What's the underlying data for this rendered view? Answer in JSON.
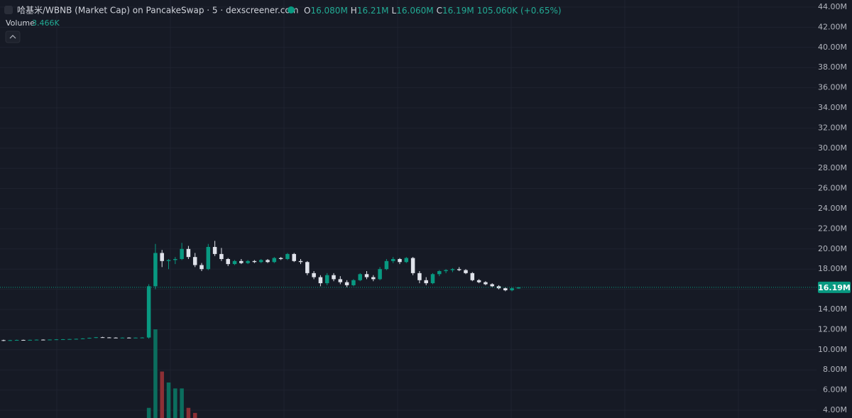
{
  "chart_data": {
    "type": "candlestick",
    "title": "哈基米/WBNB (Market Cap) on PancakeSwap · 5 · dexscreener.com",
    "legend": [
      {
        "key": "O",
        "value": "16.080M"
      },
      {
        "key": "H",
        "value": "16.21M"
      },
      {
        "key": "L",
        "value": "16.060M"
      },
      {
        "key": "C",
        "value": "16.19M"
      }
    ],
    "change": "105.060K (+0.65%)",
    "volume_label": "Volume",
    "volume_value": "3.466K",
    "up_color": "#089981",
    "down_color": "#e0e3eb",
    "volume_up_color": "#0b6e5e",
    "volume_down_color": "#8c2f35",
    "ylim": [
      4,
      44
    ],
    "yticks": [
      {
        "value": 4,
        "label": "4.00M"
      },
      {
        "value": 6,
        "label": "6.00M"
      },
      {
        "value": 8,
        "label": "8.00M"
      },
      {
        "value": 10,
        "label": "10.00M"
      },
      {
        "value": 12,
        "label": "12.00M"
      },
      {
        "value": 14,
        "label": "14.00M"
      },
      {
        "value": 16,
        "label": "16.00M"
      },
      {
        "value": 18,
        "label": "18.00M"
      },
      {
        "value": 20,
        "label": "20.00M"
      },
      {
        "value": 22,
        "label": "22.00M"
      },
      {
        "value": 24,
        "label": "24.00M"
      },
      {
        "value": 26,
        "label": "26.00M"
      },
      {
        "value": 28,
        "label": "28.00M"
      },
      {
        "value": 30,
        "label": "30.00M"
      },
      {
        "value": 32,
        "label": "32.00M"
      },
      {
        "value": 34,
        "label": "34.00M"
      },
      {
        "value": 36,
        "label": "36.00M"
      },
      {
        "value": 38,
        "label": "38.00M"
      },
      {
        "value": 40,
        "label": "40.00M"
      },
      {
        "value": 42,
        "label": "42.00M"
      },
      {
        "value": 44,
        "label": "44.00M"
      }
    ],
    "last_price": {
      "value": 16.19,
      "label": "16.19M"
    },
    "ohlc": [
      [
        10.95,
        11.0,
        10.85,
        10.9
      ],
      [
        10.9,
        10.98,
        10.88,
        10.95
      ],
      [
        10.95,
        11.0,
        10.92,
        10.97
      ],
      [
        10.97,
        11.0,
        10.94,
        10.96
      ],
      [
        10.96,
        11.0,
        10.93,
        10.98
      ],
      [
        10.98,
        11.02,
        10.95,
        11.0
      ],
      [
        11.0,
        11.03,
        10.97,
        10.99
      ],
      [
        10.99,
        11.02,
        10.96,
        11.01
      ],
      [
        11.01,
        11.05,
        10.98,
        11.03
      ],
      [
        11.03,
        11.06,
        11.0,
        11.04
      ],
      [
        11.04,
        11.08,
        11.02,
        11.06
      ],
      [
        11.06,
        11.1,
        11.03,
        11.08
      ],
      [
        11.08,
        11.14,
        11.05,
        11.12
      ],
      [
        11.12,
        11.2,
        11.1,
        11.18
      ],
      [
        11.18,
        11.26,
        11.15,
        11.24
      ],
      [
        11.24,
        11.28,
        11.2,
        11.22
      ],
      [
        11.22,
        11.25,
        11.18,
        11.2
      ],
      [
        11.2,
        11.24,
        11.16,
        11.18
      ],
      [
        11.18,
        11.22,
        11.15,
        11.2
      ],
      [
        11.2,
        11.23,
        11.17,
        11.19
      ],
      [
        11.19,
        11.22,
        11.16,
        11.2
      ],
      [
        11.2,
        11.24,
        11.17,
        11.21
      ],
      [
        11.21,
        16.5,
        11.1,
        16.3
      ],
      [
        16.3,
        20.5,
        16.0,
        19.6
      ],
      [
        19.6,
        19.9,
        18.2,
        18.8
      ],
      [
        18.8,
        19.0,
        18.0,
        18.9
      ],
      [
        18.9,
        19.2,
        18.5,
        19.0
      ],
      [
        19.0,
        20.6,
        18.9,
        20.0
      ],
      [
        20.0,
        20.3,
        19.0,
        19.2
      ],
      [
        19.2,
        19.6,
        18.2,
        18.4
      ],
      [
        18.4,
        18.6,
        17.8,
        18.0
      ],
      [
        18.0,
        20.5,
        17.9,
        20.2
      ],
      [
        20.2,
        20.8,
        19.3,
        19.5
      ],
      [
        19.5,
        20.1,
        18.8,
        19.0
      ],
      [
        19.0,
        19.1,
        18.3,
        18.5
      ],
      [
        18.5,
        18.9,
        18.4,
        18.8
      ],
      [
        18.8,
        19.0,
        18.5,
        18.6
      ],
      [
        18.6,
        18.9,
        18.5,
        18.8
      ],
      [
        18.8,
        18.9,
        18.6,
        18.7
      ],
      [
        18.7,
        19.0,
        18.6,
        18.9
      ],
      [
        18.9,
        19.0,
        18.6,
        18.7
      ],
      [
        18.7,
        19.2,
        18.6,
        19.1
      ],
      [
        19.1,
        19.2,
        18.9,
        19.0
      ],
      [
        19.0,
        19.6,
        18.9,
        19.5
      ],
      [
        19.5,
        19.6,
        18.7,
        18.8
      ],
      [
        18.8,
        19.0,
        18.5,
        18.7
      ],
      [
        18.7,
        18.8,
        17.4,
        17.6
      ],
      [
        17.6,
        17.8,
        17.0,
        17.2
      ],
      [
        17.2,
        17.4,
        16.3,
        16.6
      ],
      [
        16.6,
        17.6,
        16.4,
        17.4
      ],
      [
        17.4,
        17.6,
        16.8,
        17.0
      ],
      [
        17.0,
        17.3,
        16.5,
        16.7
      ],
      [
        16.7,
        16.9,
        16.2,
        16.4
      ],
      [
        16.4,
        17.0,
        16.3,
        16.9
      ],
      [
        16.9,
        17.6,
        16.8,
        17.5
      ],
      [
        17.5,
        17.8,
        17.0,
        17.2
      ],
      [
        17.2,
        17.4,
        16.8,
        17.0
      ],
      [
        17.0,
        18.2,
        16.9,
        18.0
      ],
      [
        18.0,
        19.0,
        17.9,
        18.8
      ],
      [
        18.8,
        19.2,
        18.6,
        19.0
      ],
      [
        19.0,
        19.1,
        18.5,
        18.7
      ],
      [
        18.7,
        19.2,
        18.6,
        19.1
      ],
      [
        19.1,
        19.2,
        17.4,
        17.6
      ],
      [
        17.6,
        17.8,
        16.6,
        16.9
      ],
      [
        16.9,
        17.2,
        16.4,
        16.6
      ],
      [
        16.6,
        17.6,
        16.5,
        17.5
      ],
      [
        17.5,
        17.9,
        17.3,
        17.8
      ],
      [
        17.8,
        18.0,
        17.6,
        17.9
      ],
      [
        17.9,
        18.1,
        17.7,
        18.0
      ],
      [
        18.0,
        18.2,
        17.8,
        17.9
      ],
      [
        17.9,
        18.0,
        17.5,
        17.6
      ],
      [
        17.6,
        17.7,
        16.8,
        16.9
      ],
      [
        16.9,
        17.0,
        16.6,
        16.7
      ],
      [
        16.7,
        16.8,
        16.4,
        16.5
      ],
      [
        16.5,
        16.6,
        16.2,
        16.3
      ],
      [
        16.3,
        16.4,
        16.0,
        16.1
      ],
      [
        16.1,
        16.2,
        15.8,
        15.9
      ],
      [
        15.9,
        16.2,
        15.8,
        16.1
      ],
      [
        16.08,
        16.21,
        16.06,
        16.19
      ]
    ],
    "volume": [
      0,
      0,
      0,
      0,
      0,
      0,
      0,
      0,
      0,
      0,
      0,
      0,
      0,
      0,
      0,
      0,
      0,
      0,
      0,
      0,
      0,
      0,
      12,
      105,
      55,
      42,
      35,
      35,
      12,
      6,
      0,
      0,
      0,
      0,
      0,
      0,
      0,
      0,
      0,
      0,
      0,
      0,
      0,
      0,
      0,
      0,
      0,
      0,
      0,
      0,
      0,
      0,
      0,
      0,
      0,
      0,
      0,
      0,
      0,
      0,
      0,
      0,
      0,
      0,
      0,
      0,
      0,
      0,
      0,
      0,
      0,
      0,
      0,
      0,
      0,
      0,
      0,
      0,
      0
    ]
  }
}
